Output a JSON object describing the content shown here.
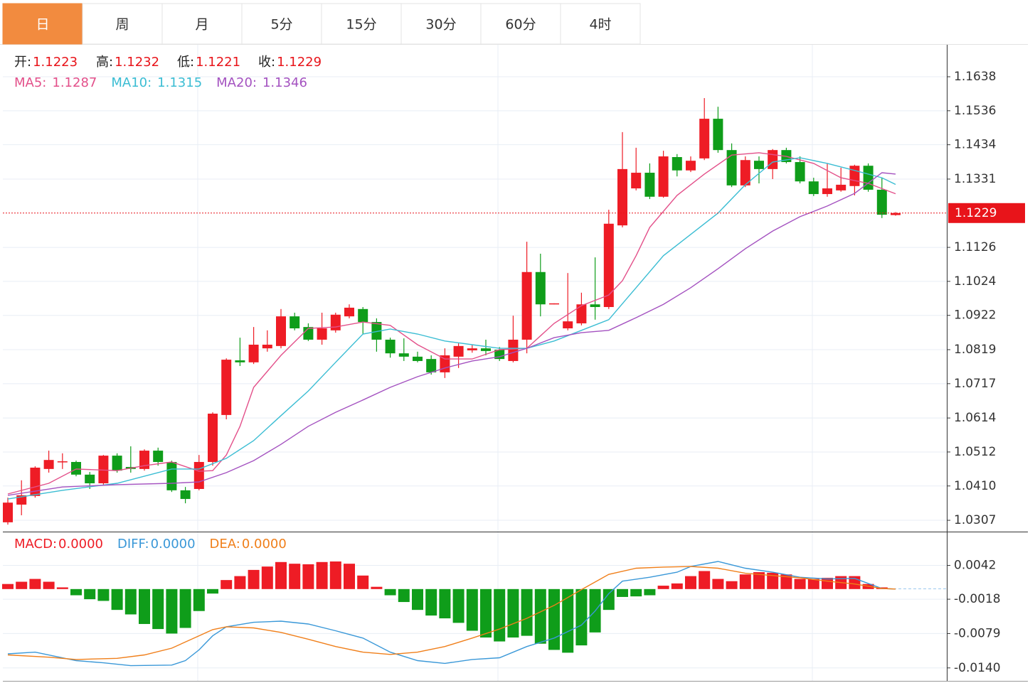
{
  "tabs": [
    "日",
    "周",
    "月",
    "5分",
    "15分",
    "30分",
    "60分",
    "4时"
  ],
  "chart_data": [
    {
      "type": "candlestick",
      "ohlc_labels": [
        "开:",
        "高:",
        "低:",
        "收:"
      ],
      "up_color": "#ee1c25",
      "down_color": "#0f9d1a",
      "open": [
        1.0301,
        1.0354,
        1.038,
        1.0461,
        1.0482,
        1.0482,
        1.0444,
        1.0418,
        1.0501,
        1.0467,
        1.0461,
        1.0516,
        1.0482,
        1.0397,
        1.0401,
        1.0482,
        1.0623,
        1.0787,
        1.0781,
        1.0823,
        1.083,
        1.0919,
        1.0887,
        1.0849,
        1.0877,
        1.0919,
        1.0941,
        1.0902,
        1.0849,
        1.0808,
        1.0798,
        1.0791,
        1.0751,
        1.0798,
        1.0817,
        1.0823,
        1.0819,
        1.0785,
        1.0849,
        1.1052,
        1.0955,
        1.0883,
        1.0898,
        1.0955,
        1.0947,
        1.1192,
        1.1303,
        1.135,
        1.1278,
        1.1397,
        1.1357,
        1.1393,
        1.1512,
        1.1418,
        1.1312,
        1.1386,
        1.1361,
        1.1418,
        1.1382,
        1.1324,
        1.1286,
        1.1297,
        1.131,
        1.1371,
        1.1299,
        1.1223
      ],
      "high": [
        1.0375,
        1.0427,
        1.0469,
        1.0516,
        1.0508,
        1.0486,
        1.0452,
        1.0503,
        1.0508,
        1.0529,
        1.052,
        1.0525,
        1.0486,
        1.0407,
        1.0503,
        1.0631,
        1.0793,
        1.0855,
        1.0887,
        1.0877,
        1.0941,
        1.093,
        1.0898,
        1.093,
        1.093,
        1.0955,
        1.0947,
        1.0913,
        1.0855,
        1.0853,
        1.0813,
        1.0802,
        1.0823,
        1.0838,
        1.0834,
        1.0849,
        1.0827,
        1.0921,
        1.1143,
        1.1107,
        1.0958,
        1.1049,
        1.099,
        1.1096,
        1.1239,
        1.1472,
        1.1425,
        1.1378,
        1.1416,
        1.1406,
        1.1399,
        1.1574,
        1.1548,
        1.1438,
        1.1399,
        1.1399,
        1.1421,
        1.1425,
        1.1399,
        1.1335,
        1.1378,
        1.1365,
        1.1374,
        1.1378,
        1.1335,
        1.1232
      ],
      "low": [
        1.0294,
        1.0322,
        1.0375,
        1.045,
        1.0461,
        1.0439,
        1.0401,
        1.0414,
        1.045,
        1.045,
        1.0456,
        1.0471,
        1.0392,
        1.0358,
        1.0397,
        1.0471,
        1.061,
        1.077,
        1.0776,
        1.0813,
        1.0823,
        1.0877,
        1.0845,
        1.0834,
        1.087,
        1.0913,
        1.0866,
        1.0813,
        1.0795,
        1.0785,
        1.0781,
        1.0744,
        1.0734,
        1.0764,
        1.081,
        1.0802,
        1.0785,
        1.0781,
        1.0808,
        1.0919,
        1.0955,
        1.0877,
        1.0892,
        1.0909,
        1.0941,
        1.1186,
        1.1297,
        1.1271,
        1.1275,
        1.1339,
        1.1352,
        1.1388,
        1.141,
        1.1307,
        1.1307,
        1.1318,
        1.1331,
        1.1378,
        1.1318,
        1.128,
        1.1278,
        1.1293,
        1.1282,
        1.1293,
        1.1214,
        1.1221
      ],
      "close": [
        1.036,
        1.0382,
        1.0465,
        1.0488,
        1.0484,
        1.0444,
        1.0418,
        1.0501,
        1.0456,
        1.0461,
        1.0516,
        1.0482,
        1.0397,
        1.0371,
        1.0482,
        1.0627,
        1.0789,
        1.0781,
        1.0834,
        1.0834,
        1.0919,
        1.0883,
        1.0849,
        1.0883,
        1.0924,
        1.0945,
        1.0902,
        1.0849,
        1.0808,
        1.0798,
        1.0785,
        1.0751,
        1.0802,
        1.083,
        1.0823,
        1.0815,
        1.0791,
        1.0849,
        1.1052,
        1.0955,
        1.0958,
        1.0904,
        1.0955,
        1.0947,
        1.1197,
        1.1361,
        1.135,
        1.1278,
        1.1399,
        1.1357,
        1.1386,
        1.1512,
        1.1418,
        1.1312,
        1.1388,
        1.1361,
        1.1418,
        1.1382,
        1.1324,
        1.1286,
        1.1303,
        1.1314,
        1.1371,
        1.1299,
        1.1224,
        1.1229
      ],
      "lines": [
        {
          "name": "MA5:",
          "color": "#e3508a",
          "x": [
            0,
            3,
            5,
            8,
            10,
            12,
            14,
            15,
            16,
            17,
            18,
            20,
            22,
            24,
            26,
            28,
            30,
            32,
            34,
            36,
            38,
            40,
            42,
            44,
            45,
            46,
            47,
            49,
            51,
            53,
            55,
            57,
            59,
            61,
            63,
            65
          ],
          "values": [
            1.0386,
            1.0418,
            1.0461,
            1.0456,
            1.0471,
            1.0482,
            1.0454,
            1.0456,
            1.0503,
            1.0589,
            1.0706,
            1.0802,
            1.0883,
            1.0887,
            1.0902,
            1.0892,
            1.0834,
            1.0791,
            1.0791,
            1.0819,
            1.0823,
            1.0898,
            1.0951,
            1.0983,
            1.1026,
            1.1101,
            1.1186,
            1.1282,
            1.1346,
            1.1403,
            1.141,
            1.1399,
            1.1378,
            1.1335,
            1.1318,
            1.1287
          ]
        },
        {
          "name": "MA10:",
          "color": "#3bbdd3",
          "x": [
            0,
            4,
            8,
            12,
            14,
            16,
            18,
            20,
            22,
            24,
            26,
            28,
            30,
            32,
            34,
            36,
            38,
            40,
            42,
            44,
            46,
            48,
            50,
            52,
            54,
            56,
            58,
            60,
            62,
            64,
            65
          ],
          "values": [
            1.0371,
            1.0397,
            1.0418,
            1.0461,
            1.0461,
            1.0493,
            1.0546,
            1.0621,
            1.0695,
            1.0781,
            1.0866,
            1.0881,
            1.0866,
            1.0845,
            1.0834,
            1.0823,
            1.0823,
            1.0845,
            1.0877,
            1.0909,
            1.1005,
            1.1101,
            1.1165,
            1.1229,
            1.1314,
            1.1382,
            1.1395,
            1.1378,
            1.1357,
            1.1335,
            1.1315
          ]
        },
        {
          "name": "MA20:",
          "color": "#a452c0",
          "x": [
            0,
            4,
            8,
            12,
            14,
            16,
            18,
            20,
            22,
            24,
            26,
            28,
            30,
            32,
            34,
            36,
            38,
            40,
            42,
            44,
            46,
            48,
            50,
            52,
            54,
            56,
            58,
            60,
            62,
            64,
            65
          ],
          "values": [
            1.0382,
            1.0407,
            1.0414,
            1.0418,
            1.0422,
            1.045,
            1.0486,
            1.0535,
            1.0589,
            1.0631,
            1.0668,
            1.0706,
            1.0738,
            1.0764,
            1.0785,
            1.0798,
            1.0823,
            1.0855,
            1.087,
            1.0877,
            1.0915,
            1.0955,
            1.1005,
            1.1062,
            1.1122,
            1.1175,
            1.1218,
            1.125,
            1.1288,
            1.135,
            1.1346
          ]
        }
      ],
      "ylim": [
        1.0273,
        1.1734
      ],
      "yticks": [
        1.1638,
        1.1536,
        1.1434,
        1.1331,
        1.1126,
        1.1024,
        1.0922,
        1.0819,
        1.0717,
        1.0614,
        1.0512,
        {
          "value": 1.041,
          "label": "1.0410"
        },
        1.0307
      ],
      "grid": true
    },
    {
      "type": "macd",
      "up_color": "#ee1c25",
      "down_color": "#0f9d1a",
      "series": [
        {
          "name": "MACD:",
          "readout": "0.0000",
          "color": "#ee1c25",
          "values": [
            0.0009,
            0.0013,
            0.0018,
            0.0013,
            0.0003,
            -0.0011,
            -0.0018,
            -0.0021,
            -0.0037,
            -0.0045,
            -0.0062,
            -0.0071,
            -0.0079,
            -0.0069,
            -0.0039,
            -0.0008,
            0.0016,
            0.0023,
            0.0034,
            0.004,
            0.0048,
            0.0045,
            0.0044,
            0.0048,
            0.0049,
            0.0045,
            0.0024,
            0.0004,
            -0.0011,
            -0.0023,
            -0.0037,
            -0.0047,
            -0.0052,
            -0.006,
            -0.0074,
            -0.0086,
            -0.0093,
            -0.0086,
            -0.0083,
            -0.0097,
            -0.0108,
            -0.0113,
            -0.01,
            -0.0077,
            -0.0037,
            -0.0014,
            -0.0013,
            -0.0011,
            0.0006,
            0.001,
            0.0023,
            0.0032,
            0.0018,
            0.0014,
            0.0026,
            0.003,
            0.0029,
            0.0026,
            0.0018,
            0.0018,
            0.002,
            0.0023,
            0.0023,
            0.0009,
            0.0003,
            0
          ]
        },
        {
          "name": "DIFF:",
          "readout": "0.0000",
          "color": "#3a98d8",
          "x": [
            0,
            2,
            5,
            7,
            9,
            12,
            13,
            14,
            15,
            16,
            18,
            20,
            22,
            24,
            26,
            28,
            30,
            32,
            34,
            36,
            38,
            40,
            42,
            43,
            44,
            45,
            47,
            49,
            50,
            52,
            54,
            56,
            58,
            60,
            62,
            64,
            65
          ],
          "values": [
            -0.0115,
            -0.0112,
            -0.0127,
            -0.0131,
            -0.0136,
            -0.0135,
            -0.0127,
            -0.0108,
            -0.0083,
            -0.0067,
            -0.0059,
            -0.0057,
            -0.0062,
            -0.0074,
            -0.0087,
            -0.0112,
            -0.0127,
            -0.0132,
            -0.0125,
            -0.0122,
            -0.0102,
            -0.0087,
            -0.0064,
            -0.0039,
            -0.0008,
            0.0014,
            0.0021,
            0.003,
            0.004,
            0.0049,
            0.0037,
            0.003,
            0.0021,
            0.0018,
            0.0019,
            0.0001,
            0
          ]
        },
        {
          "name": "DEA:",
          "readout": "0.0000",
          "color": "#f07f1a",
          "x": [
            0,
            3,
            5,
            8,
            10,
            12,
            14,
            15,
            16,
            18,
            20,
            22,
            24,
            26,
            28,
            30,
            32,
            34,
            36,
            38,
            40,
            42,
            44,
            46,
            48,
            50,
            52,
            54,
            56,
            58,
            60,
            62,
            64,
            65
          ],
          "values": [
            -0.0117,
            -0.0121,
            -0.0125,
            -0.0123,
            -0.0117,
            -0.0105,
            -0.0083,
            -0.0072,
            -0.0067,
            -0.0069,
            -0.0077,
            -0.0089,
            -0.0102,
            -0.0112,
            -0.0116,
            -0.0112,
            -0.0102,
            -0.0087,
            -0.0071,
            -0.0052,
            -0.0029,
            -0.0001,
            0.0026,
            0.0037,
            0.0039,
            0.004,
            0.0037,
            0.0028,
            0.0024,
            0.002,
            0.0014,
            0.0009,
            0.0001,
            0
          ]
        }
      ],
      "ylim": [
        -0.0163,
        0.0102
      ],
      "yticks": [
        0.0042,
        -0.0018,
        -0.0079,
        {
          "value": -0.014,
          "label": "-0.0140"
        }
      ],
      "grid": true
    }
  ]
}
